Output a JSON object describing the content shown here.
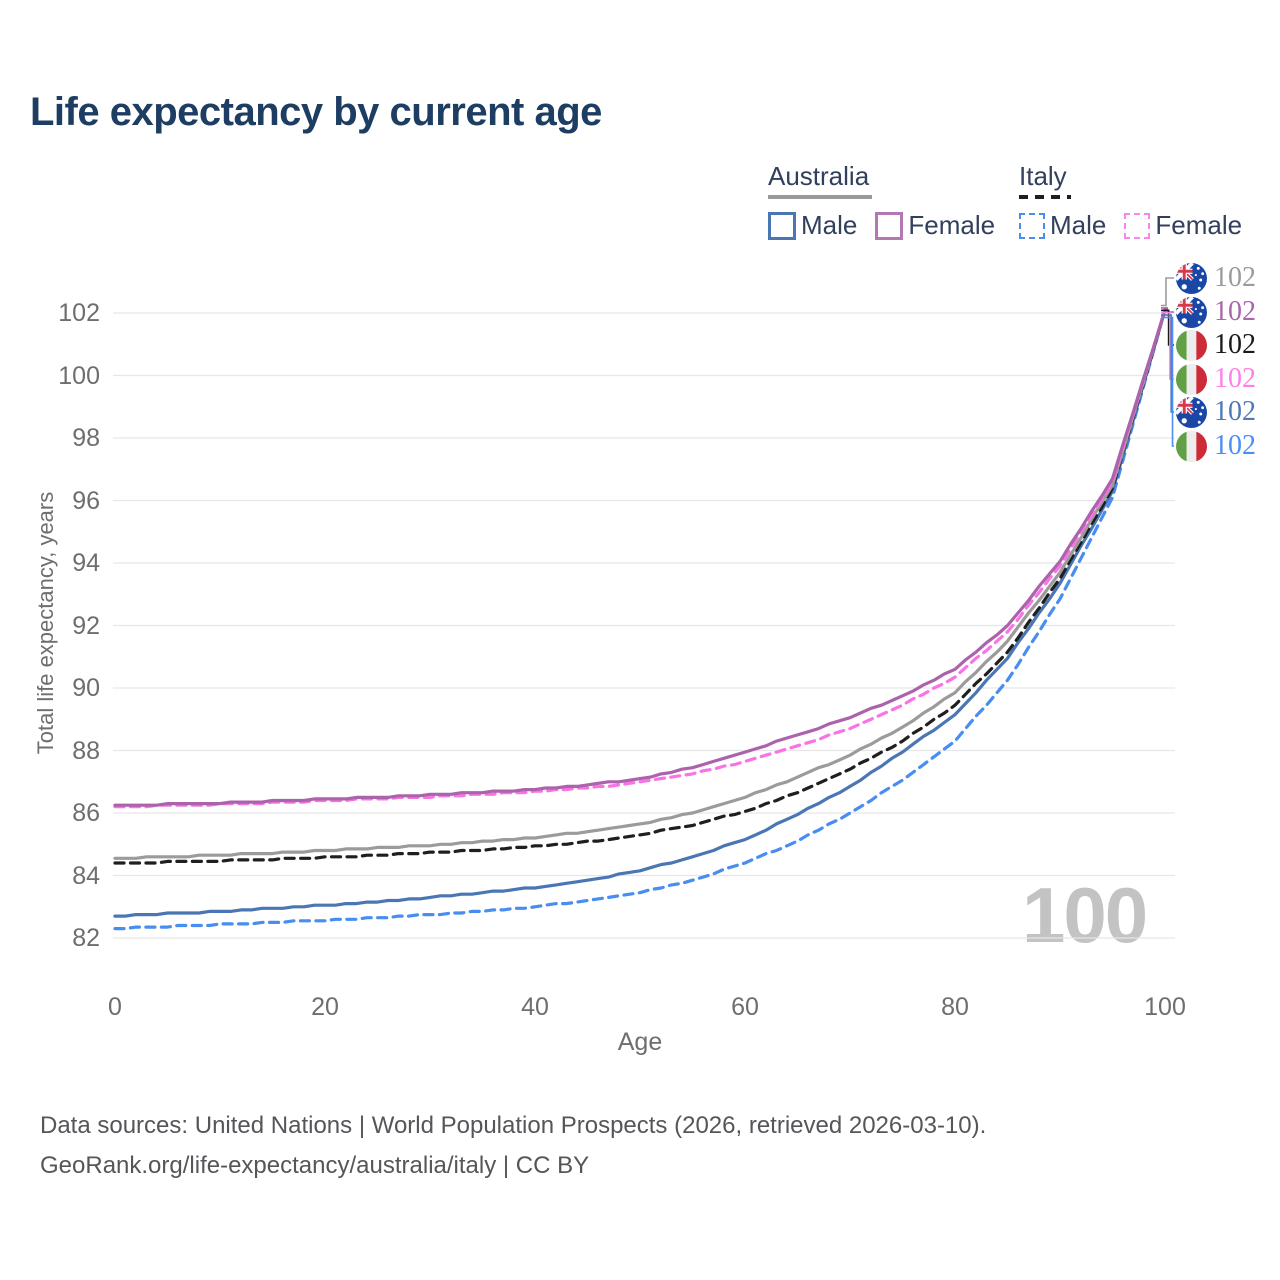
{
  "title": "Life expectancy by current age",
  "legend": {
    "groups": [
      {
        "label": "Australia",
        "line_style": "solid",
        "underline_color": "#999999",
        "items": [
          {
            "label": "Male",
            "color": "#4a76b3",
            "dash": "solid"
          },
          {
            "label": "Female",
            "color": "#b377b3",
            "dash": "solid"
          }
        ]
      },
      {
        "label": "Italy",
        "line_style": "dashed",
        "underline_color": "#1f1f1f",
        "items": [
          {
            "label": "Male",
            "color": "#478df2",
            "dash": "dashed"
          },
          {
            "label": "Female",
            "color": "#fb84ea",
            "dash": "dashed"
          }
        ]
      }
    ]
  },
  "watermark": "100",
  "right_labels": [
    {
      "country": "australia",
      "flag": "australia-flag-icon",
      "value": "102",
      "color": "#9b9b9b"
    },
    {
      "country": "australia",
      "flag": "australia-flag-icon",
      "value": "102",
      "color": "#a868a8"
    },
    {
      "country": "italy",
      "flag": "italy-flag-icon",
      "value": "102",
      "color": "#1b1b1b"
    },
    {
      "country": "italy",
      "flag": "italy-flag-icon",
      "value": "102",
      "color": "#ff7fe8"
    },
    {
      "country": "australia",
      "flag": "australia-flag-icon",
      "value": "102",
      "color": "#4e7ab8"
    },
    {
      "country": "italy",
      "flag": "italy-flag-icon",
      "value": "102",
      "color": "#4a90f2"
    }
  ],
  "footer": {
    "line1": "Data sources: United Nations | World Population Prospects (2026, retrieved 2026-03-10).",
    "line2": "GeoRank.org/life-expectancy/australia/italy | CC BY"
  },
  "chart_data": {
    "type": "line",
    "title": "Life expectancy by current age",
    "xlabel": "Age",
    "ylabel": "Total life expectancy, years",
    "xlim": [
      0,
      100
    ],
    "ylim": [
      82,
      102
    ],
    "xticks": [
      0,
      20,
      40,
      60,
      80,
      100
    ],
    "yticks": [
      82,
      84,
      86,
      88,
      90,
      92,
      94,
      96,
      98,
      100,
      102
    ],
    "grid": true,
    "legend_position": "top-right",
    "x": [
      0,
      5,
      10,
      15,
      20,
      25,
      30,
      35,
      40,
      45,
      50,
      55,
      60,
      65,
      70,
      75,
      80,
      85,
      90,
      95,
      100
    ],
    "series": [
      {
        "name": "Italy Male",
        "color": "#478df2",
        "dash": "dashed",
        "values": [
          82.3,
          82.37,
          82.43,
          82.5,
          82.57,
          82.65,
          82.75,
          82.87,
          83.0,
          83.2,
          83.45,
          83.85,
          84.4,
          85.1,
          86.0,
          87.05,
          88.3,
          90.25,
          92.85,
          96.1,
          102.1
        ]
      },
      {
        "name": "Australia Male",
        "color": "#4a76b3",
        "dash": "solid",
        "values": [
          82.7,
          82.78,
          82.85,
          82.95,
          83.05,
          83.17,
          83.3,
          83.45,
          83.62,
          83.85,
          84.15,
          84.6,
          85.15,
          85.95,
          86.85,
          87.95,
          89.15,
          90.95,
          93.35,
          96.3,
          102.1
        ]
      },
      {
        "name": "Italy Both sexes",
        "color": "#1f1f1f",
        "dash": "dashed",
        "values": [
          84.4,
          84.43,
          84.47,
          84.52,
          84.58,
          84.65,
          84.73,
          84.82,
          84.93,
          85.08,
          85.3,
          85.62,
          86.05,
          86.65,
          87.4,
          88.3,
          89.45,
          91.15,
          93.5,
          96.4,
          102.1
        ]
      },
      {
        "name": "Australia Both sexes",
        "color": "#9b9b9b",
        "dash": "solid",
        "values": [
          84.55,
          84.6,
          84.65,
          84.72,
          84.8,
          84.88,
          84.97,
          85.08,
          85.22,
          85.4,
          85.65,
          86.0,
          86.5,
          87.15,
          87.85,
          88.75,
          89.85,
          91.5,
          93.7,
          96.5,
          102.1
        ]
      },
      {
        "name": "Italy Female",
        "color": "#f973e4",
        "dash": "dashed",
        "values": [
          86.2,
          86.24,
          86.28,
          86.33,
          86.4,
          86.45,
          86.52,
          86.6,
          86.68,
          86.8,
          86.98,
          87.25,
          87.65,
          88.15,
          88.7,
          89.45,
          90.35,
          91.8,
          93.9,
          96.6,
          102.1
        ]
      },
      {
        "name": "Australia Female",
        "color": "#ab63ab",
        "dash": "solid",
        "values": [
          86.25,
          86.28,
          86.32,
          86.38,
          86.45,
          86.5,
          86.58,
          86.66,
          86.76,
          86.9,
          87.1,
          87.45,
          87.95,
          88.5,
          89.05,
          89.75,
          90.6,
          92.0,
          94.05,
          96.7,
          102.1
        ]
      }
    ]
  }
}
